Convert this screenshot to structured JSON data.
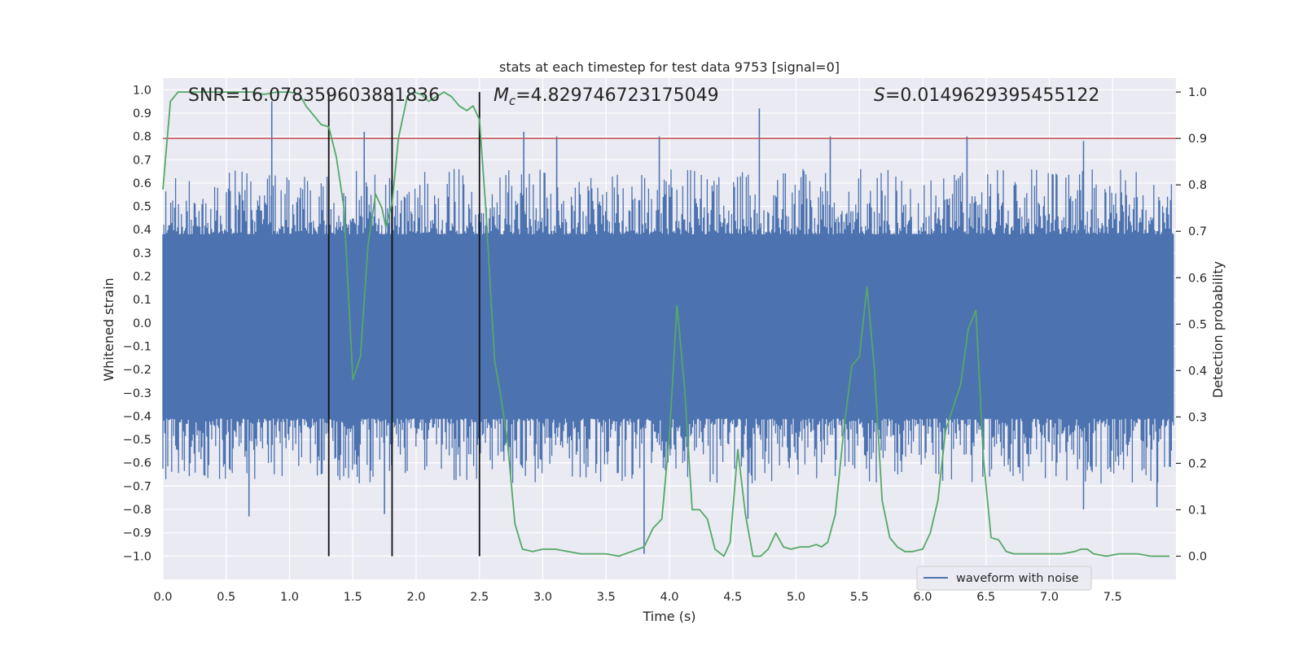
{
  "chart_data": {
    "type": "line",
    "title": "stats at each timestep for test data 9753 [signal=0]",
    "xlabel": "Time (s)",
    "ylabel": "Whitened strain",
    "y2label": "Detection probability",
    "xlim": [
      0.0,
      8.0
    ],
    "ylim": [
      -1.1,
      1.05
    ],
    "y2lim": [
      -0.05,
      1.03
    ],
    "xticks": [
      "0.0",
      "0.5",
      "1.0",
      "1.5",
      "2.0",
      "2.5",
      "3.0",
      "3.5",
      "4.0",
      "4.5",
      "5.0",
      "5.5",
      "6.0",
      "6.5",
      "7.0",
      "7.5"
    ],
    "yticks": [
      "1.0",
      "0.9",
      "0.8",
      "0.7",
      "0.6",
      "0.5",
      "0.4",
      "0.3",
      "0.2",
      "0.1",
      "0.0",
      "-0.1",
      "-0.2",
      "-0.3",
      "-0.4",
      "-0.5",
      "-0.6",
      "-0.7",
      "-0.8",
      "-0.9",
      "-1.0"
    ],
    "y2ticks": [
      "1.0",
      "0.9",
      "0.8",
      "0.7",
      "0.6",
      "0.5",
      "0.4",
      "0.3",
      "0.2",
      "0.1",
      "0.0"
    ],
    "annotations": {
      "snr_text": "SNR=16.078359603881836",
      "mc_symbol": "M",
      "mc_sub": "c",
      "mc_value": "=4.829746723175049",
      "s_symbol": "S",
      "s_value": "=0.0149629395455122"
    },
    "legend": {
      "label": "waveform with noise",
      "position": "lower-right"
    },
    "threshold": {
      "value": 0.9,
      "color": "#c44e52"
    },
    "vlines": [
      1.31,
      1.81,
      2.5
    ],
    "noise_envelope": {
      "band_top": 0.38,
      "band_bottom": -0.41,
      "spike_max": 0.95,
      "spike_min": -0.99
    },
    "noise_spikes": [
      {
        "x": 0.86,
        "y": 0.95
      },
      {
        "x": 1.59,
        "y": 0.82
      },
      {
        "x": 2.85,
        "y": 0.82
      },
      {
        "x": 3.11,
        "y": 0.8
      },
      {
        "x": 3.92,
        "y": 0.8
      },
      {
        "x": 4.71,
        "y": 0.92
      },
      {
        "x": 5.27,
        "y": 0.8
      },
      {
        "x": 6.35,
        "y": 0.8
      },
      {
        "x": 7.27,
        "y": 0.78
      },
      {
        "x": 0.68,
        "y": -0.83
      },
      {
        "x": 1.75,
        "y": -0.82
      },
      {
        "x": 3.8,
        "y": -0.99
      },
      {
        "x": 4.62,
        "y": -0.84
      },
      {
        "x": 7.27,
        "y": -0.8
      },
      {
        "x": 7.85,
        "y": -0.79
      }
    ],
    "series": [
      {
        "name": "detection probability",
        "color": "#55a868",
        "x": [
          0.0,
          0.06,
          0.12,
          0.2,
          0.3,
          0.4,
          0.5,
          0.6,
          0.7,
          0.8,
          0.9,
          1.0,
          1.08,
          1.13,
          1.19,
          1.25,
          1.31,
          1.37,
          1.43,
          1.5,
          1.56,
          1.62,
          1.68,
          1.73,
          1.76,
          1.81,
          1.86,
          1.93,
          1.98,
          2.04,
          2.1,
          2.16,
          2.22,
          2.28,
          2.34,
          2.4,
          2.45,
          2.5,
          2.55,
          2.62,
          2.66,
          2.72,
          2.78,
          2.84,
          2.92,
          3.0,
          3.1,
          3.2,
          3.3,
          3.4,
          3.5,
          3.6,
          3.7,
          3.8,
          3.87,
          3.94,
          4.0,
          4.06,
          4.12,
          4.18,
          4.24,
          4.3,
          4.36,
          4.43,
          4.48,
          4.54,
          4.6,
          4.66,
          4.72,
          4.78,
          4.84,
          4.9,
          4.96,
          5.03,
          5.1,
          5.16,
          5.2,
          5.25,
          5.31,
          5.38,
          5.44,
          5.5,
          5.56,
          5.62,
          5.68,
          5.74,
          5.8,
          5.86,
          5.92,
          6.0,
          6.06,
          6.12,
          6.18,
          6.24,
          6.3,
          6.36,
          6.42,
          6.48,
          6.54,
          6.6,
          6.66,
          6.72,
          6.78,
          6.84,
          6.9,
          7.0,
          7.1,
          7.2,
          7.25,
          7.3,
          7.35,
          7.45,
          7.55,
          7.6,
          7.7,
          7.8,
          7.9,
          7.95
        ],
        "values": [
          0.79,
          0.98,
          1.0,
          1.0,
          1.0,
          1.0,
          1.0,
          1.0,
          1.0,
          0.995,
          1.0,
          1.0,
          0.995,
          0.97,
          0.95,
          0.93,
          0.925,
          0.86,
          0.75,
          0.38,
          0.43,
          0.67,
          0.78,
          0.75,
          0.71,
          0.76,
          0.9,
          0.99,
          1.0,
          0.995,
          0.98,
          0.99,
          1.0,
          0.99,
          0.97,
          0.96,
          0.97,
          0.94,
          0.75,
          0.42,
          0.36,
          0.25,
          0.07,
          0.015,
          0.01,
          0.015,
          0.015,
          0.01,
          0.005,
          0.005,
          0.005,
          0.0,
          0.01,
          0.02,
          0.06,
          0.08,
          0.26,
          0.54,
          0.36,
          0.1,
          0.1,
          0.08,
          0.015,
          0.0,
          0.03,
          0.23,
          0.09,
          0.0,
          0.0,
          0.015,
          0.05,
          0.02,
          0.015,
          0.02,
          0.02,
          0.025,
          0.02,
          0.03,
          0.09,
          0.28,
          0.41,
          0.43,
          0.58,
          0.4,
          0.12,
          0.04,
          0.02,
          0.01,
          0.01,
          0.015,
          0.05,
          0.12,
          0.27,
          0.32,
          0.37,
          0.49,
          0.53,
          0.21,
          0.04,
          0.035,
          0.01,
          0.005,
          0.005,
          0.005,
          0.005,
          0.005,
          0.005,
          0.01,
          0.015,
          0.015,
          0.005,
          0.0,
          0.005,
          0.005,
          0.005,
          0.0,
          0.0,
          0.0
        ]
      }
    ]
  }
}
